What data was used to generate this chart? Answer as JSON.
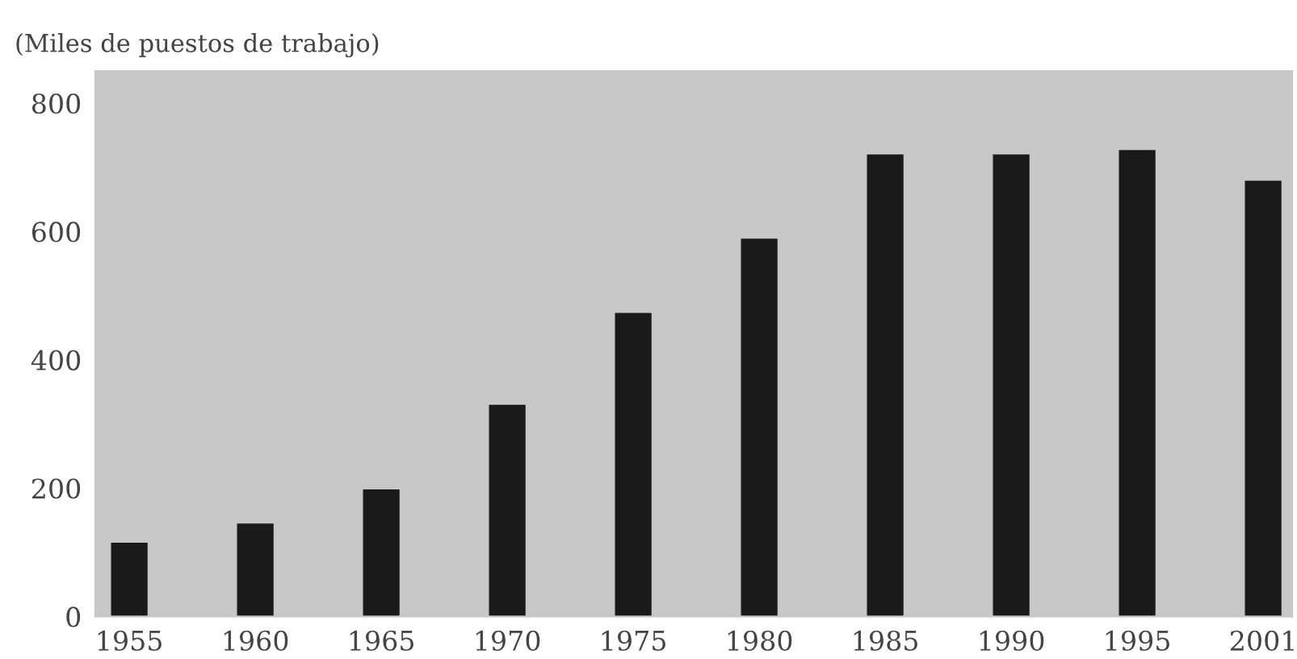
{
  "chart_data": {
    "type": "bar",
    "ylabel": "(Miles de puestos de trabajo)",
    "categories": [
      "1955",
      "1960",
      "1965",
      "1970",
      "1975",
      "1980",
      "1985",
      "1990",
      "1995",
      "2001"
    ],
    "values": [
      115,
      145,
      198,
      330,
      473,
      589,
      720,
      720,
      727,
      679
    ],
    "color": "#1a1a1a",
    "ylim": [
      0,
      850
    ],
    "yticks": [
      0,
      200,
      400,
      600,
      800
    ]
  }
}
